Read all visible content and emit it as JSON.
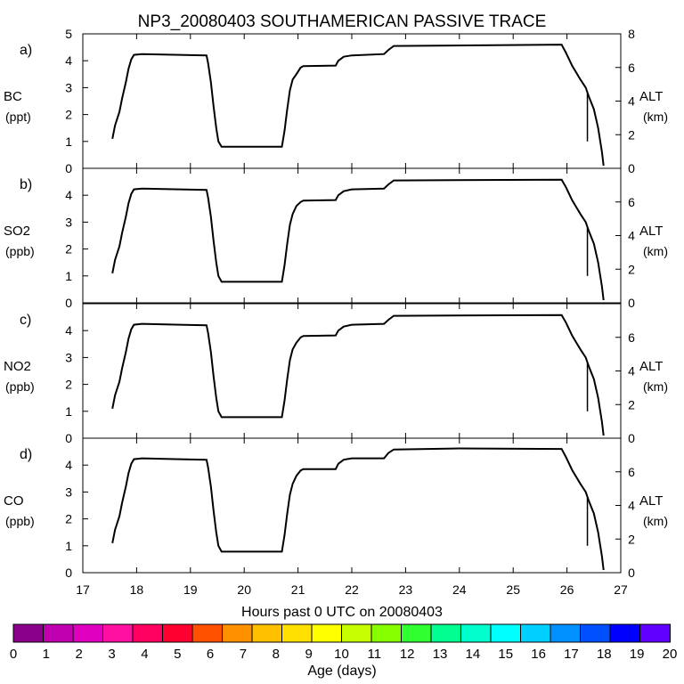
{
  "title": "NP3_20080403 SOUTHAMERICAN PASSIVE TRACE",
  "xlabel": "Hours past 0 UTC on 20080403",
  "x_ticks": [
    "17",
    "18",
    "19",
    "20",
    "21",
    "22",
    "23",
    "24",
    "25",
    "26",
    "27"
  ],
  "colorbar": {
    "label": "Age (days)",
    "ticks": [
      "0",
      "1",
      "2",
      "3",
      "4",
      "5",
      "6",
      "7",
      "8",
      "9",
      "10",
      "11",
      "12",
      "13",
      "14",
      "15",
      "16",
      "17",
      "18",
      "19",
      "20"
    ],
    "colors": [
      "#8b008b",
      "#c000b0",
      "#e000c0",
      "#ff10a0",
      "#ff0060",
      "#ff0030",
      "#ff5000",
      "#ff9000",
      "#ffc000",
      "#ffe000",
      "#ffff00",
      "#c8ff00",
      "#88ff00",
      "#30ff30",
      "#00ff90",
      "#00ffcc",
      "#00ffff",
      "#00d0ff",
      "#0090ff",
      "#0050ff",
      "#0000ff",
      "#6000ff"
    ]
  },
  "chart_data": [
    {
      "type": "line",
      "panel_label": "a)",
      "ylabel_left": [
        "BC",
        "(ppt)"
      ],
      "ylabel_right": [
        "ALT",
        "(km)"
      ],
      "x_range": [
        17,
        27
      ],
      "ylim_left": [
        0,
        5
      ],
      "left_ticks": [
        "0",
        "1",
        "2",
        "3",
        "4",
        "5"
      ],
      "ylim_right": [
        0,
        8
      ],
      "right_ticks": [
        "0",
        "2",
        "4",
        "6",
        "8"
      ],
      "series": [
        {
          "values": [
            [
              17.55,
              1.1
            ],
            [
              17.6,
              1.6
            ],
            [
              17.68,
              2.1
            ],
            [
              17.73,
              2.6
            ],
            [
              17.8,
              3.2
            ],
            [
              17.85,
              3.7
            ],
            [
              17.9,
              4.05
            ],
            [
              17.95,
              4.22
            ],
            [
              18.1,
              4.25
            ],
            [
              18.8,
              4.22
            ],
            [
              19.3,
              4.2
            ],
            [
              19.33,
              3.9
            ],
            [
              19.38,
              3.2
            ],
            [
              19.43,
              2.3
            ],
            [
              19.48,
              1.5
            ],
            [
              19.52,
              1.0
            ],
            [
              19.58,
              0.8
            ],
            [
              20.7,
              0.8
            ],
            [
              20.75,
              1.4
            ],
            [
              20.8,
              2.2
            ],
            [
              20.85,
              2.9
            ],
            [
              20.9,
              3.3
            ],
            [
              20.97,
              3.5
            ],
            [
              21.05,
              3.75
            ],
            [
              21.1,
              3.8
            ],
            [
              21.7,
              3.82
            ],
            [
              21.75,
              4.0
            ],
            [
              21.85,
              4.15
            ],
            [
              22.0,
              4.2
            ],
            [
              22.6,
              4.25
            ],
            [
              22.68,
              4.4
            ],
            [
              22.78,
              4.55
            ],
            [
              25.9,
              4.6
            ],
            [
              25.98,
              4.3
            ],
            [
              26.1,
              3.8
            ],
            [
              26.25,
              3.3
            ],
            [
              26.35,
              3.0
            ],
            [
              26.4,
              2.7
            ],
            [
              26.5,
              2.2
            ],
            [
              26.58,
              1.5
            ],
            [
              26.65,
              0.6
            ],
            [
              26.68,
              0.1
            ]
          ]
        }
      ]
    },
    {
      "type": "line",
      "panel_label": "b)",
      "ylabel_left": [
        "SO2",
        "(ppb)"
      ],
      "ylabel_right": [
        "ALT",
        "(km)"
      ],
      "x_range": [
        17,
        27
      ],
      "ylim_left": [
        0,
        5
      ],
      "left_ticks": [
        "0",
        "1",
        "2",
        "3",
        "4"
      ],
      "ylim_right": [
        0,
        8
      ],
      "right_ticks": [
        "0",
        "2",
        "4",
        "6"
      ],
      "series": [
        {
          "values": [
            [
              17.55,
              1.1
            ],
            [
              17.6,
              1.6
            ],
            [
              17.68,
              2.1
            ],
            [
              17.73,
              2.6
            ],
            [
              17.8,
              3.2
            ],
            [
              17.85,
              3.7
            ],
            [
              17.9,
              4.05
            ],
            [
              17.95,
              4.22
            ],
            [
              18.1,
              4.25
            ],
            [
              18.8,
              4.22
            ],
            [
              19.3,
              4.2
            ],
            [
              19.33,
              3.9
            ],
            [
              19.38,
              3.2
            ],
            [
              19.43,
              2.3
            ],
            [
              19.48,
              1.5
            ],
            [
              19.52,
              1.0
            ],
            [
              19.58,
              0.78
            ],
            [
              20.7,
              0.78
            ],
            [
              20.75,
              1.4
            ],
            [
              20.8,
              2.2
            ],
            [
              20.85,
              2.9
            ],
            [
              20.9,
              3.3
            ],
            [
              20.97,
              3.6
            ],
            [
              21.05,
              3.75
            ],
            [
              21.1,
              3.8
            ],
            [
              21.7,
              3.82
            ],
            [
              21.75,
              4.0
            ],
            [
              21.85,
              4.15
            ],
            [
              22.0,
              4.22
            ],
            [
              22.6,
              4.25
            ],
            [
              22.68,
              4.4
            ],
            [
              22.78,
              4.55
            ],
            [
              25.9,
              4.58
            ],
            [
              25.98,
              4.3
            ],
            [
              26.1,
              3.8
            ],
            [
              26.25,
              3.3
            ],
            [
              26.35,
              3.0
            ],
            [
              26.4,
              2.7
            ],
            [
              26.5,
              2.2
            ],
            [
              26.58,
              1.5
            ],
            [
              26.65,
              0.6
            ],
            [
              26.68,
              0.1
            ]
          ]
        }
      ]
    },
    {
      "type": "line",
      "panel_label": "c)",
      "ylabel_left": [
        "NO2",
        "(ppb)"
      ],
      "ylabel_right": [
        "ALT",
        "(km)"
      ],
      "x_range": [
        17,
        27
      ],
      "ylim_left": [
        0,
        5
      ],
      "left_ticks": [
        "0",
        "1",
        "2",
        "3",
        "4"
      ],
      "ylim_right": [
        0,
        8
      ],
      "right_ticks": [
        "0",
        "2",
        "4",
        "6"
      ],
      "series": [
        {
          "values": [
            [
              17.55,
              1.1
            ],
            [
              17.6,
              1.6
            ],
            [
              17.68,
              2.1
            ],
            [
              17.73,
              2.6
            ],
            [
              17.8,
              3.2
            ],
            [
              17.85,
              3.7
            ],
            [
              17.9,
              4.05
            ],
            [
              17.95,
              4.22
            ],
            [
              18.1,
              4.25
            ],
            [
              18.8,
              4.22
            ],
            [
              19.3,
              4.2
            ],
            [
              19.33,
              3.9
            ],
            [
              19.38,
              3.2
            ],
            [
              19.43,
              2.3
            ],
            [
              19.48,
              1.5
            ],
            [
              19.52,
              1.0
            ],
            [
              19.58,
              0.78
            ],
            [
              20.7,
              0.78
            ],
            [
              20.75,
              1.4
            ],
            [
              20.8,
              2.2
            ],
            [
              20.85,
              2.9
            ],
            [
              20.9,
              3.3
            ],
            [
              20.97,
              3.55
            ],
            [
              21.05,
              3.75
            ],
            [
              21.1,
              3.8
            ],
            [
              21.7,
              3.82
            ],
            [
              21.75,
              4.0
            ],
            [
              21.85,
              4.15
            ],
            [
              22.0,
              4.22
            ],
            [
              22.6,
              4.25
            ],
            [
              22.68,
              4.4
            ],
            [
              22.78,
              4.55
            ],
            [
              25.9,
              4.58
            ],
            [
              25.98,
              4.3
            ],
            [
              26.1,
              3.8
            ],
            [
              26.25,
              3.3
            ],
            [
              26.35,
              3.0
            ],
            [
              26.4,
              2.7
            ],
            [
              26.5,
              2.2
            ],
            [
              26.58,
              1.5
            ],
            [
              26.65,
              0.6
            ],
            [
              26.68,
              0.1
            ]
          ]
        }
      ]
    },
    {
      "type": "line",
      "panel_label": "d)",
      "ylabel_left": [
        "CO",
        "(ppb)"
      ],
      "ylabel_right": [
        "ALT",
        "(km)"
      ],
      "x_range": [
        17,
        27
      ],
      "ylim_left": [
        0,
        5
      ],
      "left_ticks": [
        "0",
        "1",
        "2",
        "3",
        "4"
      ],
      "ylim_right": [
        0,
        8
      ],
      "right_ticks": [
        "0",
        "2",
        "4",
        "6"
      ],
      "series": [
        {
          "values": [
            [
              17.55,
              1.1
            ],
            [
              17.6,
              1.6
            ],
            [
              17.68,
              2.1
            ],
            [
              17.73,
              2.6
            ],
            [
              17.8,
              3.2
            ],
            [
              17.85,
              3.7
            ],
            [
              17.9,
              4.05
            ],
            [
              17.95,
              4.22
            ],
            [
              18.1,
              4.25
            ],
            [
              18.8,
              4.22
            ],
            [
              19.3,
              4.2
            ],
            [
              19.33,
              3.9
            ],
            [
              19.38,
              3.2
            ],
            [
              19.43,
              2.3
            ],
            [
              19.48,
              1.5
            ],
            [
              19.52,
              1.0
            ],
            [
              19.58,
              0.78
            ],
            [
              20.7,
              0.78
            ],
            [
              20.75,
              1.4
            ],
            [
              20.8,
              2.2
            ],
            [
              20.85,
              2.9
            ],
            [
              20.9,
              3.3
            ],
            [
              20.97,
              3.6
            ],
            [
              21.05,
              3.8
            ],
            [
              21.1,
              3.85
            ],
            [
              21.7,
              3.85
            ],
            [
              21.75,
              4.05
            ],
            [
              21.85,
              4.2
            ],
            [
              22.0,
              4.25
            ],
            [
              22.6,
              4.25
            ],
            [
              22.68,
              4.45
            ],
            [
              22.78,
              4.58
            ],
            [
              24.0,
              4.62
            ],
            [
              25.9,
              4.6
            ],
            [
              25.98,
              4.3
            ],
            [
              26.1,
              3.8
            ],
            [
              26.25,
              3.3
            ],
            [
              26.35,
              3.0
            ],
            [
              26.4,
              2.7
            ],
            [
              26.5,
              2.2
            ],
            [
              26.58,
              1.5
            ],
            [
              26.65,
              0.6
            ],
            [
              26.68,
              0.1
            ]
          ]
        }
      ]
    }
  ]
}
